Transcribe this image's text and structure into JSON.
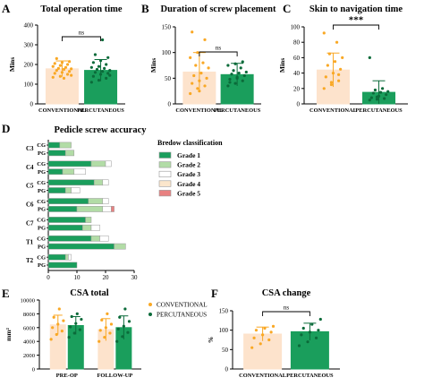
{
  "colors": {
    "conventional": "#F9A825",
    "conventional_fill": "#FDE3CC",
    "percutaneous": "#1A9E5C",
    "percutaneous_dark": "#0B6B3A",
    "grade1": "#1A9E5C",
    "grade2": "#B2DCA6",
    "grade3": "#FFFFFF",
    "grade4": "#FBE6CC",
    "grade5": "#E88080",
    "axis": "#000000"
  },
  "chart_data": [
    {
      "id": "A",
      "panel_letter": "A",
      "type": "bar",
      "title": "Total operation time",
      "ylabel": "Mins",
      "ylim": [
        0,
        400
      ],
      "yticks": [
        0,
        100,
        200,
        300,
        400
      ],
      "categories": [
        "CONVENTIONAL",
        "PERCUTANEOUS"
      ],
      "values": [
        178,
        170
      ],
      "errors": [
        40,
        55
      ],
      "significance": "ns",
      "points": [
        [
          135,
          140,
          150,
          155,
          160,
          165,
          170,
          175,
          178,
          180,
          185,
          190,
          195,
          200,
          205,
          210,
          215,
          230,
          130,
          145
        ],
        [
          110,
          120,
          130,
          140,
          150,
          155,
          160,
          165,
          170,
          175,
          180,
          185,
          190,
          200,
          210,
          220,
          235,
          250,
          325,
          145
        ]
      ]
    },
    {
      "id": "B",
      "panel_letter": "B",
      "type": "bar",
      "title": "Duration of screw placement",
      "ylabel": "Mins",
      "ylim": [
        0,
        150
      ],
      "yticks": [
        0,
        50,
        100,
        150
      ],
      "categories": [
        "CONVENTIONAL",
        "PERCUTANEOUS"
      ],
      "values": [
        62,
        57
      ],
      "errors": [
        38,
        22
      ],
      "significance": "ns",
      "points": [
        [
          20,
          30,
          35,
          40,
          45,
          50,
          55,
          60,
          70,
          75,
          80,
          90,
          100,
          125,
          140,
          25
        ],
        [
          35,
          40,
          45,
          48,
          50,
          55,
          58,
          60,
          62,
          65,
          70,
          75,
          78,
          82,
          42,
          52
        ]
      ]
    },
    {
      "id": "C",
      "panel_letter": "C",
      "type": "bar",
      "title": "Skin to navigation time",
      "ylabel": "Mins",
      "ylim": [
        0,
        100
      ],
      "yticks": [
        0,
        20,
        40,
        60,
        80,
        100
      ],
      "categories": [
        "CONVENTIONAL",
        "PERCUTANEOUS"
      ],
      "values": [
        44,
        15
      ],
      "errors": [
        22,
        15
      ],
      "significance": "***",
      "points": [
        [
          20,
          25,
          30,
          35,
          40,
          45,
          50,
          55,
          60,
          65,
          80,
          92,
          28,
          38
        ],
        [
          5,
          6,
          7,
          8,
          10,
          12,
          14,
          15,
          16,
          18,
          20,
          60,
          9
        ]
      ]
    },
    {
      "id": "D",
      "panel_letter": "D",
      "type": "bar",
      "orientation": "horizontal",
      "stacked": true,
      "title": "Pedicle screw accuracy",
      "xlim": [
        0,
        30
      ],
      "xticks": [
        0,
        10,
        20,
        30
      ],
      "groups": [
        "C3",
        "C4",
        "C5",
        "C6",
        "C7",
        "T1",
        "T2"
      ],
      "subgroups": [
        "CG",
        "PG"
      ],
      "legend_title": "Bredow classification",
      "legend_labels": [
        "Grade 1",
        "Grade 2",
        "Grade 3",
        "Grade 4",
        "Grade 5"
      ],
      "legend_position": "right",
      "rows": [
        {
          "group": "C3",
          "sub": "CG",
          "values": [
            4,
            4,
            0,
            0,
            0
          ]
        },
        {
          "group": "C3",
          "sub": "PG",
          "values": [
            6,
            3,
            0,
            0,
            0
          ]
        },
        {
          "group": "C4",
          "sub": "CG",
          "values": [
            15,
            5,
            2,
            0,
            0
          ]
        },
        {
          "group": "C4",
          "sub": "PG",
          "values": [
            5,
            4,
            4,
            0,
            0
          ]
        },
        {
          "group": "C5",
          "sub": "CG",
          "values": [
            16,
            3,
            2,
            0,
            0
          ]
        },
        {
          "group": "C5",
          "sub": "PG",
          "values": [
            6,
            2,
            3,
            0,
            0
          ]
        },
        {
          "group": "C6",
          "sub": "CG",
          "values": [
            14,
            5,
            2,
            0,
            0
          ]
        },
        {
          "group": "C6",
          "sub": "PG",
          "values": [
            10,
            9,
            3,
            0,
            1
          ]
        },
        {
          "group": "C7",
          "sub": "CG",
          "values": [
            13,
            2,
            0,
            0,
            0
          ]
        },
        {
          "group": "C7",
          "sub": "PG",
          "values": [
            12,
            3,
            3,
            0,
            0
          ]
        },
        {
          "group": "T1",
          "sub": "CG",
          "values": [
            15,
            3,
            3,
            0,
            0
          ]
        },
        {
          "group": "T1",
          "sub": "PG",
          "values": [
            23,
            4,
            0,
            0,
            0
          ]
        },
        {
          "group": "T2",
          "sub": "CG",
          "values": [
            6,
            1,
            1,
            0,
            0
          ]
        },
        {
          "group": "T2",
          "sub": "PG",
          "values": [
            10,
            0,
            0,
            0,
            0
          ]
        }
      ]
    },
    {
      "id": "E",
      "panel_letter": "E",
      "type": "bar",
      "title": "CSA total",
      "ylabel": "mm²",
      "ylim": [
        0,
        10000
      ],
      "yticks": [
        0,
        2000,
        4000,
        6000,
        8000,
        10000
      ],
      "categories": [
        "PRE-OP",
        "FOLLOW-UP"
      ],
      "series": [
        {
          "name": "CONVENTIONAL",
          "values": [
            6400,
            5700
          ],
          "errors": [
            1400,
            1600
          ],
          "points": [
            [
              4300,
              5000,
              5500,
              6000,
              6500,
              7000,
              7500,
              8700
            ],
            [
              4000,
              4600,
              5200,
              5600,
              6000,
              6500,
              7100,
              8000
            ]
          ]
        },
        {
          "name": "PERCUTANEOUS",
          "values": [
            6300,
            6000
          ],
          "errors": [
            1300,
            1700
          ],
          "points": [
            [
              4600,
              5200,
              5700,
              6100,
              6600,
              7200,
              7600,
              8000
            ],
            [
              4000,
              4700,
              5300,
              5800,
              6200,
              6900,
              7500,
              8700
            ]
          ]
        }
      ],
      "legend_position": "top-right"
    },
    {
      "id": "F",
      "panel_letter": "F",
      "type": "bar",
      "title": "CSA change",
      "ylabel": "%",
      "ylim": [
        0,
        150
      ],
      "yticks": [
        0,
        50,
        100,
        150
      ],
      "categories": [
        "CONVENTIONAL",
        "PERCUTANEOUS"
      ],
      "values": [
        90,
        96
      ],
      "errors": [
        18,
        22
      ],
      "significance": "ns",
      "points": [
        [
          55,
          65,
          75,
          80,
          88,
          95,
          100,
          105,
          110
        ],
        [
          60,
          70,
          80,
          88,
          95,
          100,
          105,
          115,
          128
        ]
      ]
    }
  ]
}
